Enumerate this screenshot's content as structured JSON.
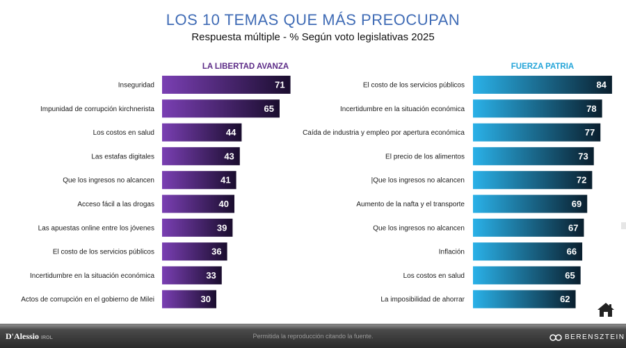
{
  "title": "LOS 10 TEMAS QUE MÁS PREOCUPAN",
  "subtitle": "Respuesta múltiple - % Según voto legislativas 2025",
  "colors": {
    "lla_start": "#7a3fb3",
    "lla_end": "#1a0d2e",
    "fp_start": "#2ab1e8",
    "fp_end": "#0a1f2e",
    "title": "#3f6bb5"
  },
  "chart_data": [
    {
      "type": "bar",
      "orientation": "horizontal",
      "title": "LA LIBERTAD AVANZA",
      "categories": [
        "Inseguridad",
        "Impunidad de corrupción kirchnerista",
        "Los costos en salud",
        "Las estafas digitales",
        "Que los ingresos no alcancen",
        "Acceso fácil a las drogas",
        "Las apuestas online entre los jóvenes",
        "El costo de los servicios públicos",
        "Incertidumbre en la situación económica",
        "Actos de corrupción en el gobierno de Milei"
      ],
      "values": [
        71,
        65,
        44,
        43,
        41,
        40,
        39,
        36,
        33,
        30
      ],
      "xlim": [
        0,
        100
      ],
      "grid": false,
      "data_labels": true
    },
    {
      "type": "bar",
      "orientation": "horizontal",
      "title": "FUERZA PATRIA",
      "categories": [
        "El costo de los servicios públicos",
        "Incertidumbre en la situación económica",
        "Caída de industria y empleo por apertura económica",
        "El precio de los alimentos",
        "|Que los ingresos no alcancen",
        "Aumento de la nafta y el transporte",
        "Que los ingresos no alcancen",
        "Inflación",
        "Los costos en salud",
        "La imposibilidad de ahorrar"
      ],
      "values": [
        84,
        78,
        77,
        73,
        72,
        69,
        67,
        66,
        65,
        62
      ],
      "xlim": [
        0,
        100
      ],
      "grid": false,
      "data_labels": true
    }
  ],
  "footer": {
    "note": "Permitida la reproducción citando la fuente.",
    "logo_left": "D'Alessio",
    "logo_left_suffix": "IROL",
    "logo_right": "BERENSZTEIN"
  },
  "icons": {
    "home": "home-icon"
  }
}
